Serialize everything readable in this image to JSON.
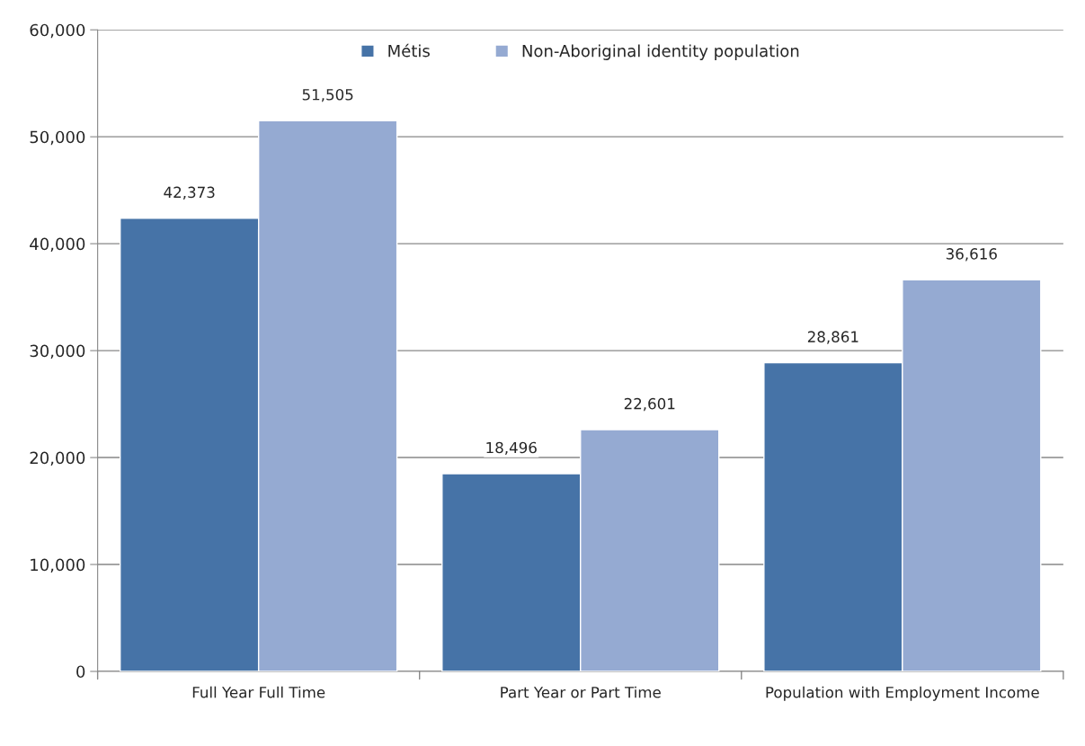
{
  "chart_data": {
    "type": "bar",
    "categories": [
      "Full Year Full Time",
      "Part Year or Part Time",
      "Population with Employment Income"
    ],
    "series": [
      {
        "name": "Métis",
        "color": "#4673a7",
        "values": [
          42373,
          18496,
          28861
        ],
        "value_labels": [
          "42,373",
          "18,496",
          "28,861"
        ]
      },
      {
        "name": "Non-Aboriginal identity population",
        "color": "#95aad2",
        "values": [
          51505,
          22601,
          36616
        ],
        "value_labels": [
          "51,505",
          "22,601",
          "36,616"
        ]
      }
    ],
    "ylim": [
      0,
      60000
    ],
    "yticks": [
      {
        "value": 0,
        "label": "0"
      },
      {
        "value": 10000,
        "label": "10,000"
      },
      {
        "value": 20000,
        "label": "20,000"
      },
      {
        "value": 30000,
        "label": "30,000"
      },
      {
        "value": 40000,
        "label": "40,000"
      },
      {
        "value": 50000,
        "label": "50,000"
      },
      {
        "value": 60000,
        "label": "60,000"
      }
    ],
    "grid": "y",
    "legend": "top"
  }
}
